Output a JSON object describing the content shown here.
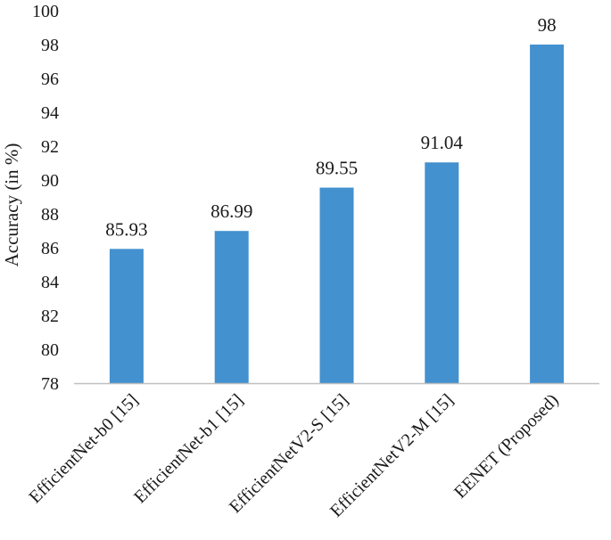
{
  "chart_data": {
    "type": "bar",
    "categories": [
      "EfficientNet-b0 [15]",
      "EfficientNet-b1 [15]",
      "EfficientNetV2-S [15]",
      "EfficientNetV2-M [15]",
      "EENET (Proposed)"
    ],
    "values": [
      85.93,
      86.99,
      89.55,
      91.04,
      98
    ],
    "data_labels": [
      "85.93",
      "86.99",
      "89.55",
      "91.04",
      "98"
    ],
    "ylabel": "Accuracy (in %)",
    "xlabel": "",
    "ylim": [
      78,
      100
    ],
    "yticks": [
      78,
      80,
      82,
      84,
      86,
      88,
      90,
      92,
      94,
      96,
      98,
      100
    ],
    "grid": false,
    "legend": "none",
    "bar_color": "#4391CF",
    "axis_color": "#BFBFBF"
  }
}
